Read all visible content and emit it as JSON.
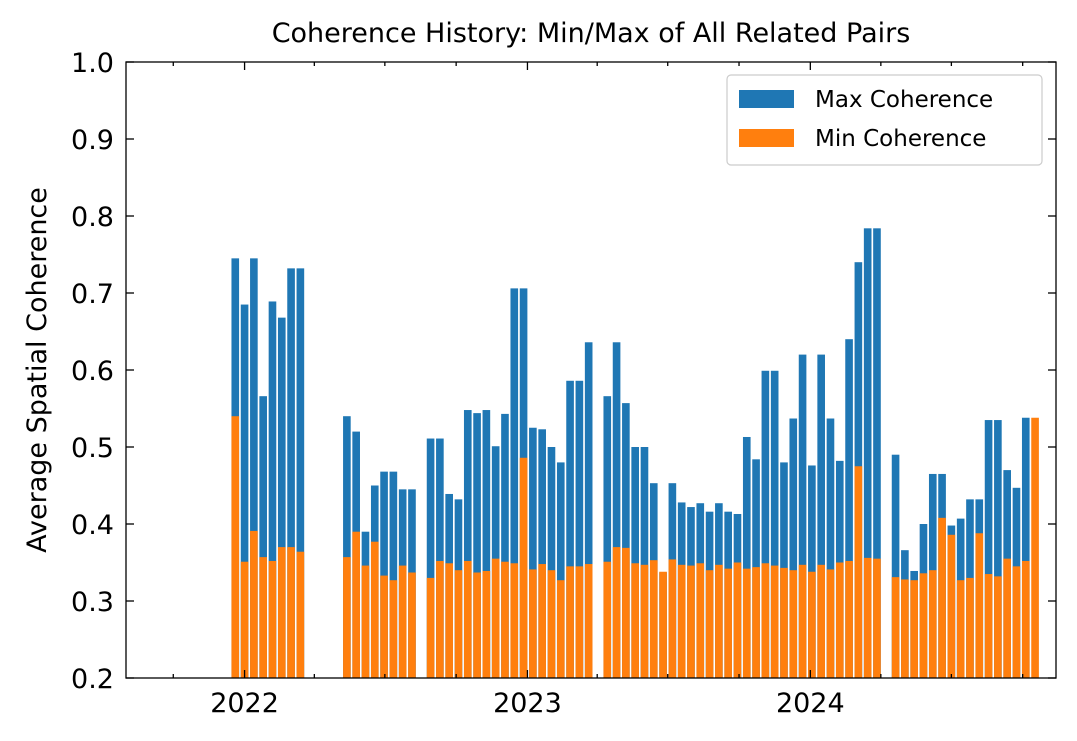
{
  "chart_data": {
    "type": "bar",
    "title": "Coherence History: Min/Max of All Related Pairs",
    "xlabel": "",
    "ylabel": "Average Spatial Coherence",
    "ylim": [
      0.2,
      1.0
    ],
    "xlim": [
      "2021-08-01",
      "2024-11-13"
    ],
    "x_ticks": [
      "2022",
      "2023",
      "2024"
    ],
    "y_ticks": [
      "0.2",
      "0.3",
      "0.4",
      "0.5",
      "0.6",
      "0.7",
      "0.8",
      "0.9",
      "1.0"
    ],
    "legend_placement": "top-right",
    "colors": {
      "max": "#1f77b4",
      "min": "#ff7f0e"
    },
    "dates": [
      "2021-12-20",
      "2022-01-01",
      "2022-01-13",
      "2022-01-25",
      "2022-02-06",
      "2022-02-18",
      "2022-03-02",
      "2022-03-14",
      "2022-03-26",
      "2022-04-07",
      "2022-05-13",
      "2022-05-25",
      "2022-06-06",
      "2022-06-18",
      "2022-06-30",
      "2022-07-12",
      "2022-07-24",
      "2022-08-05",
      "2022-08-29",
      "2022-09-10",
      "2022-09-22",
      "2022-10-04",
      "2022-10-16",
      "2022-10-28",
      "2022-11-09",
      "2022-11-21",
      "2022-12-03",
      "2022-12-15",
      "2022-12-27",
      "2023-01-08",
      "2023-01-20",
      "2023-02-01",
      "2023-02-13",
      "2023-02-25",
      "2023-03-09",
      "2023-03-21",
      "2023-04-14",
      "2023-04-26",
      "2023-05-08",
      "2023-05-20",
      "2023-06-01",
      "2023-06-13",
      "2023-06-25",
      "2023-07-07",
      "2023-07-19",
      "2023-07-31",
      "2023-08-12",
      "2023-08-24",
      "2023-09-05",
      "2023-09-17",
      "2023-09-29",
      "2023-10-11",
      "2023-10-23",
      "2023-11-04",
      "2023-11-16",
      "2023-11-28",
      "2023-12-10",
      "2023-12-22",
      "2024-01-03",
      "2024-01-15",
      "2024-01-27",
      "2024-02-08",
      "2024-02-20",
      "2024-03-03",
      "2024-03-15",
      "2024-03-27",
      "2024-04-20",
      "2024-05-02",
      "2024-05-14",
      "2024-05-26",
      "2024-06-07",
      "2024-06-19",
      "2024-07-01",
      "2024-07-13",
      "2024-07-25",
      "2024-08-06",
      "2024-08-18",
      "2024-08-30",
      "2024-09-11",
      "2024-09-23",
      "2024-10-05",
      "2024-10-17"
    ],
    "series": [
      {
        "name": "Max Coherence",
        "values": [
          0.745,
          0.685,
          0.745,
          0.566,
          0.689,
          0.668,
          0.732,
          0.732,
          null,
          null,
          0.54,
          0.52,
          0.39,
          0.45,
          0.468,
          0.468,
          0.445,
          0.445,
          0.511,
          0.511,
          0.439,
          0.432,
          0.548,
          0.544,
          0.548,
          0.501,
          0.543,
          0.706,
          0.706,
          0.525,
          0.523,
          0.5,
          0.48,
          0.586,
          0.586,
          0.636,
          0.566,
          0.636,
          0.557,
          0.5,
          0.5,
          0.453,
          0.337,
          0.453,
          0.428,
          0.422,
          0.427,
          0.416,
          0.427,
          0.416,
          0.413,
          0.513,
          0.484,
          0.599,
          0.599,
          0.48,
          0.537,
          0.62,
          0.476,
          0.62,
          0.537,
          0.482,
          0.64,
          0.74,
          0.784,
          0.784,
          0.49,
          0.366,
          0.339,
          0.4,
          0.465,
          0.465,
          0.398,
          0.407,
          0.432,
          0.432,
          0.535,
          0.535,
          0.47,
          0.447,
          0.538,
          null
        ]
      },
      {
        "name": "Min Coherence",
        "values": [
          0.54,
          0.351,
          0.391,
          0.357,
          0.352,
          0.37,
          0.37,
          0.364,
          null,
          null,
          0.357,
          0.39,
          0.346,
          0.377,
          0.333,
          0.327,
          0.346,
          0.337,
          0.33,
          0.352,
          0.349,
          0.34,
          0.352,
          0.337,
          0.339,
          0.355,
          0.351,
          0.349,
          0.486,
          0.341,
          0.348,
          0.34,
          0.327,
          0.345,
          0.345,
          0.348,
          0.351,
          0.37,
          0.369,
          0.349,
          0.347,
          0.353,
          0.338,
          0.354,
          0.347,
          0.346,
          0.349,
          0.34,
          0.347,
          0.342,
          0.35,
          0.342,
          0.344,
          0.349,
          0.346,
          0.343,
          0.34,
          0.347,
          0.338,
          0.347,
          0.341,
          0.35,
          0.352,
          0.475,
          0.356,
          0.355,
          0.331,
          0.328,
          0.327,
          0.336,
          0.34,
          0.408,
          0.386,
          0.327,
          0.33,
          0.388,
          0.335,
          0.332,
          0.355,
          0.345,
          0.352,
          0.538
        ]
      }
    ]
  }
}
